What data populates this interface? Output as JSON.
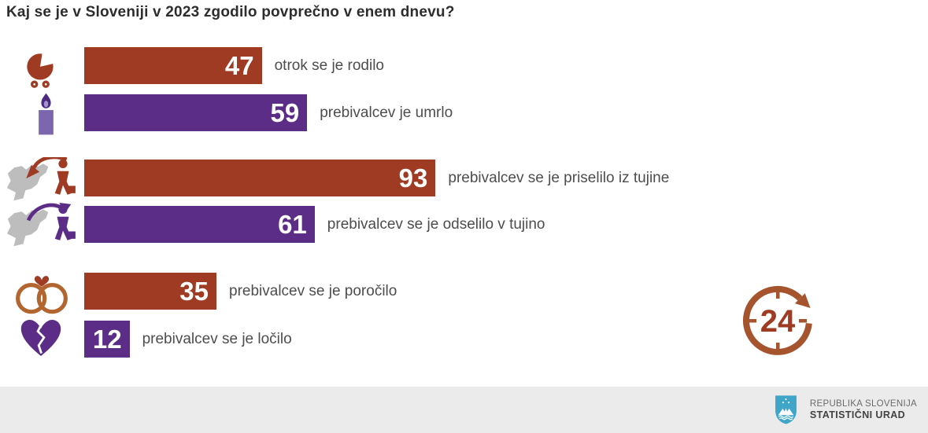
{
  "title": "Kaj se je v Sloveniji v 2023 zgodilo povprečno v enem dnevu?",
  "colors": {
    "red": "#9e3b22",
    "purple": "#5b2d87",
    "candle_body": "#7c66ae",
    "candle_flame": "#4b2b82",
    "map_gray": "#bdbdbd",
    "ring_copper": "#b2652f",
    "clock_rust": "#a5542e",
    "label_gray": "#4d4d4d",
    "footer_bg": "#ebebeb",
    "shield_blue": "#3fa5c9"
  },
  "chart_data": {
    "type": "bar",
    "orientation": "horizontal",
    "title": "Kaj se je v Sloveniji v 2023 zgodilo povprečno v enem dnevu?",
    "value_labels_inside_bars": true,
    "axis": "none",
    "bars": [
      {
        "value": 47,
        "label": "otrok se je rodilo",
        "color": "#9e3b22",
        "icon": "baby-pram"
      },
      {
        "value": 59,
        "label": "prebivalcev je umrlo",
        "color": "#5b2d87",
        "icon": "candle"
      },
      {
        "value": 93,
        "label": "prebivalcev se je priselilo iz tujine",
        "color": "#9e3b22",
        "icon": "slovenia-map-arrow-in"
      },
      {
        "value": 61,
        "label": "prebivalcev se je odselilo v tujino",
        "color": "#5b2d87",
        "icon": "slovenia-map-arrow-out"
      },
      {
        "value": 35,
        "label": "prebivalcev se je poročilo",
        "color": "#9e3b22",
        "icon": "wedding-rings"
      },
      {
        "value": 12,
        "label": "prebivalcev se je ločilo",
        "color": "#5b2d87",
        "icon": "broken-heart"
      }
    ]
  },
  "clock_badge": {
    "label": "24"
  },
  "footer": {
    "line1": "REPUBLIKA SLOVENIJA",
    "line2": "STATISTIČNI URAD"
  }
}
